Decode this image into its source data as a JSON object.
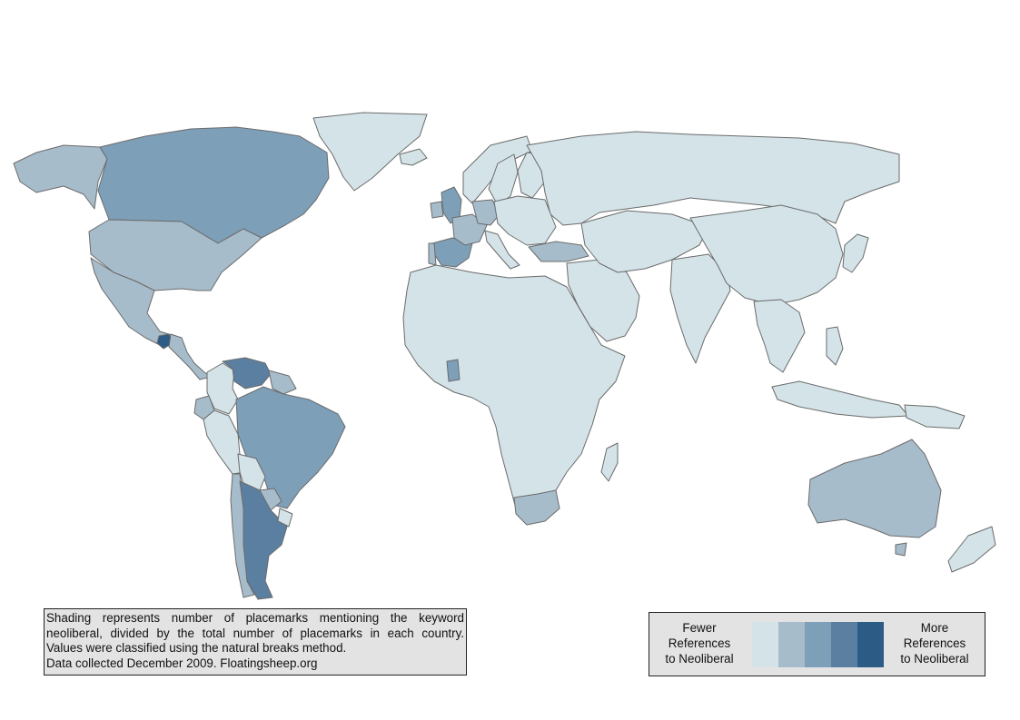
{
  "map": {
    "type": "choropleth",
    "classes": [
      {
        "rank": 1,
        "color": "#d3e3e8"
      },
      {
        "rank": 2,
        "color": "#a7bccb"
      },
      {
        "rank": 3,
        "color": "#7e9fb8"
      },
      {
        "rank": 4,
        "color": "#5a7fa1"
      },
      {
        "rank": 5,
        "color": "#2c5c86"
      }
    ],
    "land_default_color": "#d3e3e8",
    "border_color": "#6b6b6b",
    "regions": [
      {
        "name": "Alaska",
        "class": 2
      },
      {
        "name": "Canada",
        "class": 3
      },
      {
        "name": "United States",
        "class": 2
      },
      {
        "name": "Greenland",
        "class": 1
      },
      {
        "name": "Mexico",
        "class": 2
      },
      {
        "name": "Guatemala",
        "class": 5
      },
      {
        "name": "Central America",
        "class": 2
      },
      {
        "name": "Colombia",
        "class": 1
      },
      {
        "name": "Venezuela",
        "class": 4
      },
      {
        "name": "Guianas",
        "class": 2
      },
      {
        "name": "Ecuador",
        "class": 2
      },
      {
        "name": "Peru",
        "class": 1
      },
      {
        "name": "Brazil",
        "class": 3
      },
      {
        "name": "Bolivia",
        "class": 1
      },
      {
        "name": "Paraguay",
        "class": 2
      },
      {
        "name": "Chile",
        "class": 2
      },
      {
        "name": "Argentina",
        "class": 4
      },
      {
        "name": "Uruguay",
        "class": 1
      },
      {
        "name": "Iceland",
        "class": 1
      },
      {
        "name": "United Kingdom",
        "class": 3
      },
      {
        "name": "Ireland",
        "class": 2
      },
      {
        "name": "Norway",
        "class": 1
      },
      {
        "name": "Sweden",
        "class": 1
      },
      {
        "name": "Finland",
        "class": 1
      },
      {
        "name": "Spain",
        "class": 3
      },
      {
        "name": "Portugal",
        "class": 2
      },
      {
        "name": "France",
        "class": 2
      },
      {
        "name": "Germany",
        "class": 2
      },
      {
        "name": "Italy",
        "class": 1
      },
      {
        "name": "Turkey",
        "class": 2
      },
      {
        "name": "Russia",
        "class": 1
      },
      {
        "name": "Europe (other)",
        "class": 1
      },
      {
        "name": "Africa",
        "class": 1
      },
      {
        "name": "Ghana",
        "class": 3
      },
      {
        "name": "South Africa",
        "class": 2
      },
      {
        "name": "Madagascar",
        "class": 1
      },
      {
        "name": "Middle East",
        "class": 1
      },
      {
        "name": "Central Asia",
        "class": 1
      },
      {
        "name": "India",
        "class": 1
      },
      {
        "name": "China",
        "class": 1
      },
      {
        "name": "Japan",
        "class": 1
      },
      {
        "name": "Southeast Asia",
        "class": 1
      },
      {
        "name": "Philippines",
        "class": 1
      },
      {
        "name": "Indonesia",
        "class": 1
      },
      {
        "name": "Papua New Guinea",
        "class": 1
      },
      {
        "name": "Australia",
        "class": 2
      },
      {
        "name": "Tasmania",
        "class": 2
      },
      {
        "name": "New Zealand",
        "class": 1
      }
    ]
  },
  "note": {
    "line1": "Shading represents number of placemarks mentioning the keyword",
    "line2": "neoliberal, divided by the total number of placemarks in each country.",
    "line3": "Values were classified using the natural breaks method.",
    "line4": "Data collected December 2009. Floatingsheep.org"
  },
  "legend": {
    "left": [
      "Fewer",
      "References",
      "to Neoliberal"
    ],
    "right": [
      "More",
      "References",
      "to Neoliberal"
    ]
  }
}
